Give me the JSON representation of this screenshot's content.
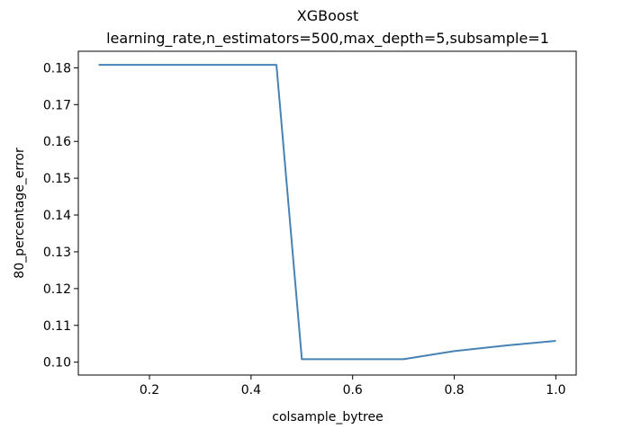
{
  "chart_data": {
    "type": "line",
    "title": "XGBoost",
    "subtitle": "learning_rate,n_estimators=500,max_depth=5,subsample=1",
    "xlabel": "colsample_bytree",
    "ylabel": "80_percentage_error",
    "xlim": [
      0.06,
      1.04
    ],
    "ylim": [
      0.0965,
      0.1845
    ],
    "x_ticks": [
      0.2,
      0.4,
      0.6,
      0.8,
      1.0
    ],
    "x_tick_labels": [
      "0.2",
      "0.4",
      "0.6",
      "0.8",
      "1.0"
    ],
    "y_ticks": [
      0.1,
      0.11,
      0.12,
      0.13,
      0.14,
      0.15,
      0.16,
      0.17,
      0.18
    ],
    "y_tick_labels": [
      "0.10",
      "0.11",
      "0.12",
      "0.13",
      "0.14",
      "0.15",
      "0.16",
      "0.17",
      "0.18"
    ],
    "grid": false,
    "series": [
      {
        "color": "#4682b4",
        "x": [
          0.1,
          0.2,
          0.3,
          0.4,
          0.45,
          0.5,
          0.6,
          0.7,
          0.8,
          0.9,
          1.0
        ],
        "y": [
          0.1808,
          0.1808,
          0.1808,
          0.1808,
          0.1808,
          0.1008,
          0.1008,
          0.1008,
          0.103,
          0.1045,
          0.1058
        ]
      }
    ]
  }
}
